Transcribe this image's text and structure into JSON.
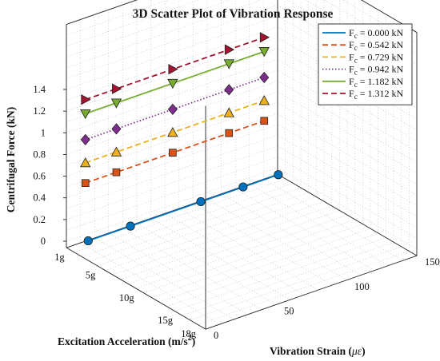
{
  "chart_data": {
    "type": "scatter",
    "subtype": "3d-line-marker",
    "title": "3D Scatter Plot of Vibration Response",
    "xlabel": "Excitation Acceleration (m/s²)",
    "xlabel_base": "Excitation Acceleration (m/s",
    "xlabel_sup": "2",
    "xlabel_tail": ")",
    "ylabel": "Vibration Strain (με)",
    "ylabel_base": "Vibration Strain (",
    "ylabel_sym": "με",
    "ylabel_tail": ")",
    "zlabel": "Centrifugal Force (kN)",
    "x_ticks": [
      "1g",
      "5g",
      "10g",
      "15g",
      "18g"
    ],
    "x_tick_values": [
      1,
      5,
      10,
      15,
      18
    ],
    "xlim": [
      0,
      18
    ],
    "y_ticks": [
      "0",
      "50",
      "100",
      "150"
    ],
    "y_tick_values": [
      0,
      50,
      100,
      150
    ],
    "ylim": [
      0,
      150
    ],
    "z_ticks": [
      "0",
      "0.2",
      "0.4",
      "0.6",
      "0.8",
      "1",
      "1.2",
      "1.4"
    ],
    "z_tick_values": [
      0,
      0.2,
      0.4,
      0.6,
      0.8,
      1,
      1.2,
      1.4
    ],
    "zlim": [
      0,
      1.4
    ],
    "grid": true,
    "legend_position": "top-right",
    "series": [
      {
        "name": "F_c = 0.000 kN",
        "name_base": "F",
        "name_sub": "c",
        "name_value": " = 0.000 kN",
        "color": "#0072BD",
        "line": "solid",
        "marker": "circle",
        "marker_fill": "#0072BD",
        "points": [
          {
            "x": 1,
            "y": 10,
            "z": 0.0
          },
          {
            "x": 1,
            "y": 40,
            "z": 0.0
          },
          {
            "x": 1,
            "y": 90,
            "z": 0.0
          },
          {
            "x": 1,
            "y": 120,
            "z": 0.0
          },
          {
            "x": 1,
            "y": 145,
            "z": 0.0
          }
        ]
      },
      {
        "name": "F_c = 0.542 kN",
        "name_base": "F",
        "name_sub": "c",
        "name_value": " = 0.542 kN",
        "color": "#D95319",
        "line": "dashed",
        "marker": "square",
        "marker_fill": "#D95319",
        "points": [
          {
            "x": 1,
            "y": 8,
            "z": 0.542
          },
          {
            "x": 1,
            "y": 30,
            "z": 0.542
          },
          {
            "x": 1,
            "y": 70,
            "z": 0.542
          },
          {
            "x": 1,
            "y": 110,
            "z": 0.542
          },
          {
            "x": 1,
            "y": 135,
            "z": 0.542
          }
        ]
      },
      {
        "name": "F_c = 0.729 kN",
        "name_base": "F",
        "name_sub": "c",
        "name_value": " = 0.729 kN",
        "color": "#EDB120",
        "line": "dashed",
        "marker": "triangle-up",
        "marker_fill": "#EDB120",
        "points": [
          {
            "x": 1,
            "y": 8,
            "z": 0.729
          },
          {
            "x": 1,
            "y": 30,
            "z": 0.729
          },
          {
            "x": 1,
            "y": 70,
            "z": 0.729
          },
          {
            "x": 1,
            "y": 110,
            "z": 0.729
          },
          {
            "x": 1,
            "y": 135,
            "z": 0.729
          }
        ]
      },
      {
        "name": "F_c = 0.942 kN",
        "name_base": "F",
        "name_sub": "c",
        "name_value": " = 0.942 kN",
        "color": "#7E2F8E",
        "line": "dotted",
        "marker": "diamond",
        "marker_fill": "#7E2F8E",
        "points": [
          {
            "x": 1,
            "y": 8,
            "z": 0.942
          },
          {
            "x": 1,
            "y": 30,
            "z": 0.942
          },
          {
            "x": 1,
            "y": 70,
            "z": 0.942
          },
          {
            "x": 1,
            "y": 110,
            "z": 0.942
          },
          {
            "x": 1,
            "y": 135,
            "z": 0.942
          }
        ]
      },
      {
        "name": "F_c = 1.182 kN",
        "name_base": "F",
        "name_sub": "c",
        "name_value": " = 1.182 kN",
        "color": "#77AC30",
        "line": "solid",
        "marker": "triangle-down",
        "marker_fill": "#77AC30",
        "points": [
          {
            "x": 1,
            "y": 8,
            "z": 1.182
          },
          {
            "x": 1,
            "y": 30,
            "z": 1.182
          },
          {
            "x": 1,
            "y": 70,
            "z": 1.182
          },
          {
            "x": 1,
            "y": 110,
            "z": 1.182
          },
          {
            "x": 1,
            "y": 135,
            "z": 1.182
          }
        ]
      },
      {
        "name": "F_c = 1.312 kN",
        "name_base": "F",
        "name_sub": "c",
        "name_value": " = 1.312 kN",
        "color": "#A2142F",
        "line": "dashed",
        "marker": "triangle-right",
        "marker_fill": "#A2142F",
        "points": [
          {
            "x": 1,
            "y": 8,
            "z": 1.312
          },
          {
            "x": 1,
            "y": 30,
            "z": 1.312
          },
          {
            "x": 1,
            "y": 70,
            "z": 1.312
          },
          {
            "x": 1,
            "y": 110,
            "z": 1.312
          },
          {
            "x": 1,
            "y": 135,
            "z": 1.312
          }
        ]
      }
    ]
  }
}
